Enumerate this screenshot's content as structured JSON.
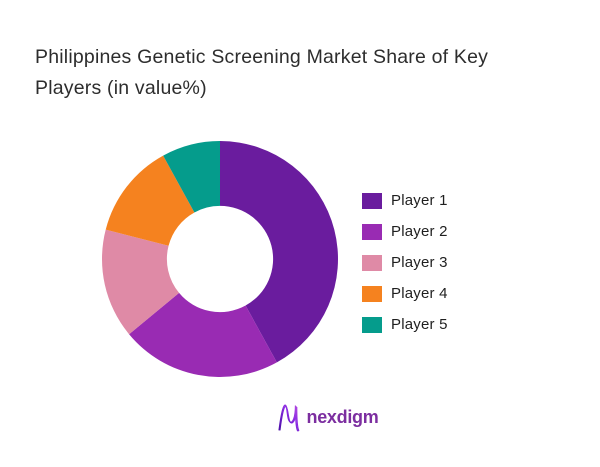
{
  "header": {
    "title_line1": "Philippines Genetic Screening Market Share of Key",
    "title_line2": "Players (in value%)"
  },
  "chart_data": {
    "type": "pie",
    "subtype": "donut",
    "title": "Philippines Genetic Screening Market Share of Key Players (in value%)",
    "categories": [
      "Player 1",
      "Player 2",
      "Player 3",
      "Player 4",
      "Player 5"
    ],
    "values": [
      42,
      22,
      15,
      13,
      8
    ],
    "colors": [
      "#6A1C9E",
      "#992BB3",
      "#DF8AA6",
      "#F5821F",
      "#059C8C"
    ],
    "legend_position": "right",
    "start_angle_deg": 0,
    "direction": "clockwise",
    "inner_radius_ratio": 0.45
  },
  "footer": {
    "brand": "nexdigm",
    "brand_color": "#7c2ea0"
  }
}
